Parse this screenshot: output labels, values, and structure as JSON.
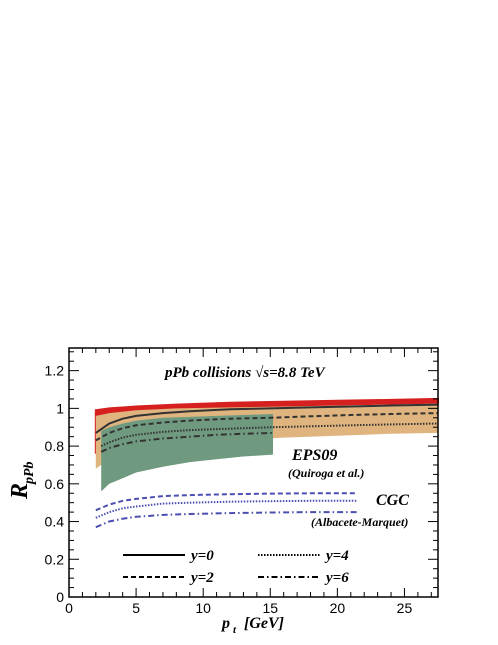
{
  "chart_data": {
    "type": "line",
    "title": "pPb collisions √s=8.8 TeV",
    "xlabel": "p",
    "xlabel_sub": "t",
    "xlabel_unit": "[GeV]",
    "ylabel": "R",
    "ylabel_sub": "pPb",
    "xlim": [
      0,
      27.5
    ],
    "ylim": [
      0,
      1.32
    ],
    "xticks": [
      0,
      5,
      10,
      15,
      20,
      25
    ],
    "yticks": [
      0,
      0.2,
      0.4,
      0.6,
      0.8,
      1,
      1.2
    ],
    "xtick_labels": [
      "0",
      "5",
      "10",
      "15",
      "20",
      "25"
    ],
    "ytick_labels": [
      "0",
      "0.2",
      "0.4",
      "0.6",
      "0.8",
      "1",
      "1.2"
    ],
    "grid": false,
    "legend_position": "bottom",
    "annotations": [
      {
        "label": "EPS09",
        "ref": "(Quiroga et al.)"
      },
      {
        "label": "CGC",
        "ref": "(Albacete-Marquet)"
      }
    ],
    "bands": [
      {
        "name": "y=0",
        "color": "#d62020",
        "x": [
          2,
          3,
          5,
          8,
          12,
          16,
          20,
          24,
          27.5
        ],
        "lower": [
          0.76,
          0.9,
          0.97,
          0.99,
          1.0,
          1.01,
          1.02,
          1.025,
          1.03
        ],
        "upper": [
          0.99,
          1.0,
          1.01,
          1.02,
          1.03,
          1.035,
          1.04,
          1.045,
          1.05
        ]
      },
      {
        "name": "y=2",
        "color": "#dfb47e",
        "x": [
          2,
          3,
          5,
          8,
          12,
          16,
          20,
          24,
          27.5
        ],
        "lower": [
          0.68,
          0.73,
          0.78,
          0.81,
          0.83,
          0.845,
          0.855,
          0.865,
          0.87
        ],
        "upper": [
          0.96,
          0.975,
          0.99,
          1.0,
          1.005,
          1.01,
          1.015,
          1.02,
          1.025
        ]
      },
      {
        "name": "y=4",
        "color": "#6f9a80",
        "x": [
          2.4,
          3,
          4,
          5,
          7,
          9,
          11,
          13,
          15.2
        ],
        "lower": [
          0.56,
          0.6,
          0.63,
          0.66,
          0.69,
          0.715,
          0.73,
          0.745,
          0.755
        ],
        "upper": [
          0.88,
          0.9,
          0.92,
          0.935,
          0.95,
          0.955,
          0.96,
          0.965,
          0.97
        ]
      }
    ],
    "series": [
      {
        "name": "y=0",
        "style": "solid",
        "color": "#333333",
        "x": [
          2,
          3,
          4,
          5,
          7,
          9,
          12,
          15,
          18,
          21,
          24,
          27.5
        ],
        "y": [
          0.87,
          0.92,
          0.945,
          0.96,
          0.975,
          0.985,
          0.995,
          1.0,
          1.005,
          1.01,
          1.015,
          1.02
        ]
      },
      {
        "name": "y=2",
        "style": "dashed",
        "color": "#333333",
        "x": [
          2,
          3,
          4,
          5,
          7,
          9,
          12,
          15,
          18,
          21,
          24,
          27.5
        ],
        "y": [
          0.83,
          0.87,
          0.895,
          0.91,
          0.925,
          0.935,
          0.945,
          0.95,
          0.958,
          0.965,
          0.97,
          0.975
        ]
      },
      {
        "name": "y=4",
        "style": "dotted",
        "color": "#333333",
        "x": [
          2.4,
          3,
          4,
          5,
          7,
          9,
          11,
          13,
          15.2,
          18,
          21,
          24,
          27.5
        ],
        "y": [
          0.8,
          0.82,
          0.845,
          0.86,
          0.875,
          0.885,
          0.89,
          0.895,
          0.9,
          0.905,
          0.91,
          0.915,
          0.92
        ]
      },
      {
        "name": "y=6",
        "style": "dashdot",
        "color": "#333333",
        "x": [
          2.4,
          3,
          4,
          5,
          7,
          9,
          11,
          13,
          15.2
        ],
        "y": [
          0.77,
          0.79,
          0.81,
          0.825,
          0.84,
          0.85,
          0.86,
          0.865,
          0.87
        ]
      },
      {
        "name": "CGC y=2",
        "style": "dashed",
        "color": "#4a4fb0",
        "x": [
          2,
          3,
          4,
          5,
          7,
          9,
          12,
          15,
          18,
          21.5
        ],
        "y": [
          0.46,
          0.49,
          0.51,
          0.52,
          0.535,
          0.54,
          0.545,
          0.548,
          0.55,
          0.55
        ]
      },
      {
        "name": "CGC y=4",
        "style": "dotted",
        "color": "#4a4fb0",
        "x": [
          2,
          3,
          4,
          5,
          7,
          9,
          12,
          15,
          18,
          21.5
        ],
        "y": [
          0.42,
          0.45,
          0.47,
          0.48,
          0.495,
          0.5,
          0.505,
          0.508,
          0.51,
          0.51
        ]
      },
      {
        "name": "CGC y=6",
        "style": "dashdot",
        "color": "#4a4fb0",
        "x": [
          2,
          3,
          4,
          5,
          7,
          9,
          12,
          15,
          18,
          21.5
        ],
        "y": [
          0.37,
          0.4,
          0.415,
          0.425,
          0.435,
          0.44,
          0.445,
          0.448,
          0.45,
          0.45
        ]
      }
    ],
    "legend": [
      {
        "label": "y=0",
        "style": "solid"
      },
      {
        "label": "y=2",
        "style": "dashed"
      },
      {
        "label": "y=4",
        "style": "dotted"
      },
      {
        "label": "y=6",
        "style": "dashdot"
      }
    ]
  }
}
